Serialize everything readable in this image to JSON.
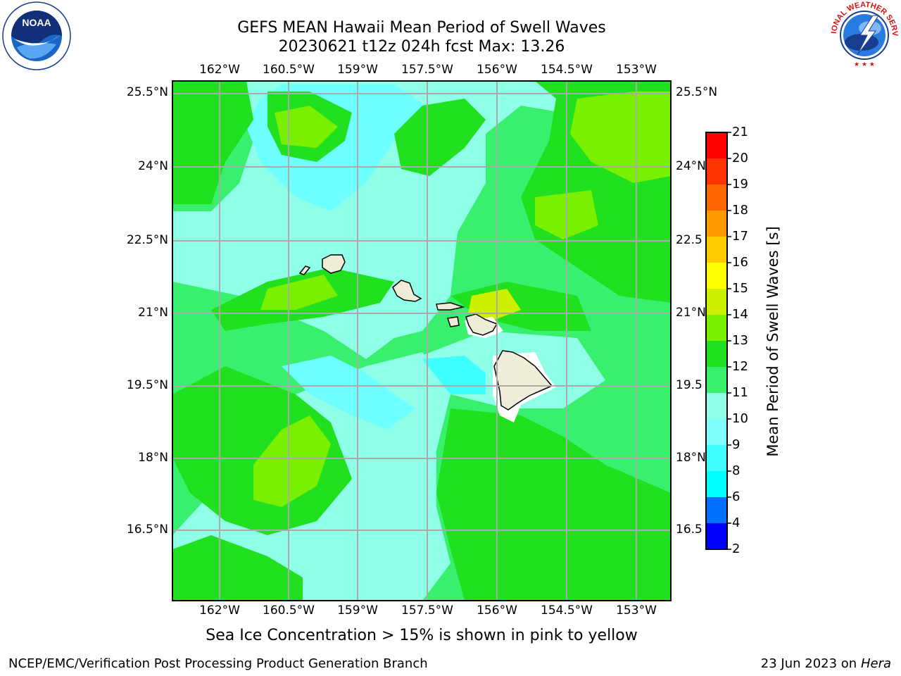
{
  "title": {
    "line1": "GEFS MEAN Hawaii Mean Period of Swell Waves",
    "line2": "20230621 t12z 024h fcst   Max: 13.26"
  },
  "logos": {
    "noaa": {
      "text": "NOAA",
      "ring_text": "NATIONAL OCEANIC AND ATMOSPHERIC ADMINISTRATION · U.S. DEPARTMENT OF COMMERCE"
    },
    "nws": {
      "ring_text": "NATIONAL WEATHER SERVICE"
    }
  },
  "map": {
    "lon_labels": [
      "162°W",
      "160.5°W",
      "159°W",
      "157.5°W",
      "156°W",
      "154.5°W",
      "153°W"
    ],
    "lat_labels": [
      "25.5°N",
      "24°N",
      "22.5°N",
      "21°N",
      "19.5°N",
      "18°N",
      "16.5°N"
    ],
    "lat_labels_right": [
      "25.5°N",
      "24°N",
      "22.5",
      "21°N",
      "19.5",
      "18°N",
      "16.5"
    ],
    "lon_range": [
      -163,
      -152.6
    ],
    "lat_range": [
      14.9,
      25.7
    ]
  },
  "colorbar": {
    "title": "Mean Period of Swell Waves [s]",
    "ticks": [
      "21",
      "20",
      "19",
      "18",
      "17",
      "16",
      "15",
      "14",
      "13",
      "12",
      "11",
      "10",
      "9",
      "8",
      "6",
      "4",
      "2"
    ],
    "levels": [
      2,
      4,
      6,
      8,
      9,
      10,
      11,
      12,
      13,
      14,
      15,
      16,
      17,
      18,
      19,
      20,
      21
    ],
    "colors": [
      "#0000ff",
      "#0070ff",
      "#00ffff",
      "#40ffff",
      "#80ffff",
      "#90ffe8",
      "#38f06e",
      "#20e020",
      "#78f000",
      "#ccf000",
      "#ffff00",
      "#ffcc00",
      "#ff9900",
      "#ff6600",
      "#ff3300",
      "#ff0000"
    ]
  },
  "note": "Sea Ice Concentration > 15% is shown in pink to yellow",
  "footer": {
    "left": "NCEP/EMC/Verification Post Processing Product Generation Branch",
    "right_date": "23 Jun 2023 on",
    "right_host": "Hera"
  }
}
